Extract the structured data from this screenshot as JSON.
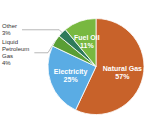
{
  "chart_data": {
    "type": "pie",
    "categories": [
      "Natural Gas",
      "Electricity",
      "Liquid\nPetroleum\nGas",
      "Other",
      "Fuel Oil"
    ],
    "values": [
      57,
      25,
      4,
      3,
      11
    ],
    "value_labels": [
      "57%",
      "25%",
      "4%",
      "3%",
      "11%"
    ],
    "colors": [
      "#c8622a",
      "#5aace4",
      "#5a9e35",
      "#2e7a5a",
      "#78b840"
    ],
    "data_labels": true
  }
}
